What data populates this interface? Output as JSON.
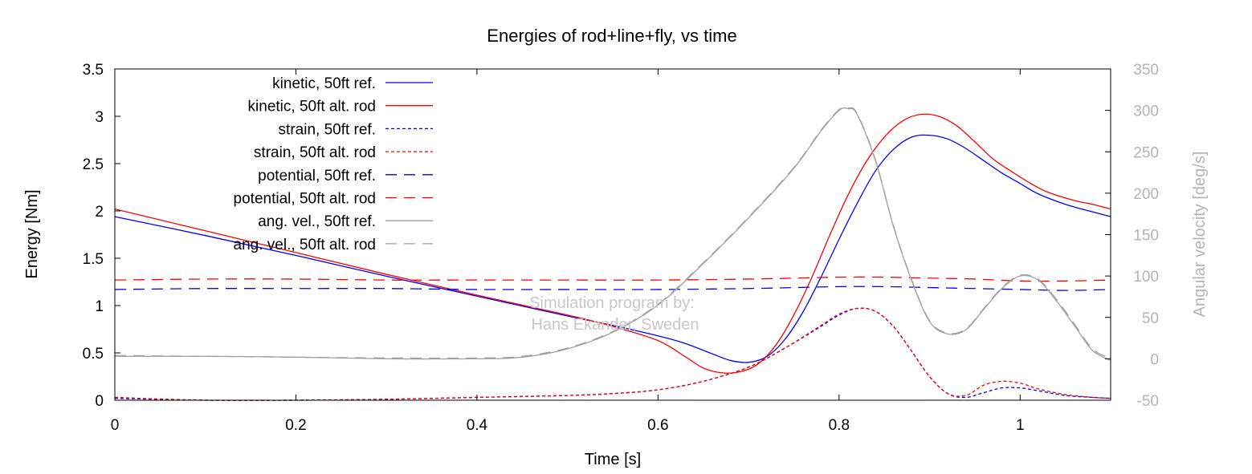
{
  "chart_data": {
    "type": "line",
    "title": "Energies of rod+line+fly, vs time",
    "xlabel": "Time [s]",
    "ylabel": "Energy [Nm]",
    "y2label": "Angular velocity [deg/s]",
    "xlim": [
      0,
      1.1
    ],
    "ylim": [
      0,
      3.5
    ],
    "y2lim": [
      -50,
      350
    ],
    "xticks": [
      0,
      0.2,
      0.4,
      0.6,
      0.8,
      1
    ],
    "xtick_labels": [
      "0",
      "0.2",
      "0.4",
      "0.6",
      "0.8",
      "1"
    ],
    "yticks": [
      0,
      0.5,
      1,
      1.5,
      2,
      2.5,
      3,
      3.5
    ],
    "ytick_labels": [
      "0",
      "0.5",
      "1",
      "1.5",
      "2",
      "2.5",
      "3",
      "3.5"
    ],
    "y2ticks": [
      -50,
      0,
      50,
      100,
      150,
      200,
      250,
      300,
      350
    ],
    "y2tick_labels": [
      "-50",
      "0",
      "50",
      "100",
      "150",
      "200",
      "250",
      "300",
      "350"
    ],
    "grid": false,
    "legend_position": "top-left",
    "watermark": [
      "Simulation program by:",
      "Hans Ekander, Sweden"
    ],
    "series": [
      {
        "name": "kinetic, 50ft ref.",
        "color": "#0000ff",
        "dash": "solid",
        "axis": "left",
        "points": [
          [
            0,
            1.94
          ],
          [
            0.1,
            1.74
          ],
          [
            0.2,
            1.53
          ],
          [
            0.3,
            1.31
          ],
          [
            0.4,
            1.1
          ],
          [
            0.5,
            0.89
          ],
          [
            0.55,
            0.79
          ],
          [
            0.6,
            0.68
          ],
          [
            0.63,
            0.6
          ],
          [
            0.66,
            0.49
          ],
          [
            0.68,
            0.42
          ],
          [
            0.7,
            0.4
          ],
          [
            0.72,
            0.46
          ],
          [
            0.74,
            0.64
          ],
          [
            0.76,
            0.93
          ],
          [
            0.78,
            1.3
          ],
          [
            0.8,
            1.7
          ],
          [
            0.82,
            2.08
          ],
          [
            0.84,
            2.42
          ],
          [
            0.86,
            2.65
          ],
          [
            0.88,
            2.78
          ],
          [
            0.9,
            2.8
          ],
          [
            0.92,
            2.76
          ],
          [
            0.94,
            2.66
          ],
          [
            0.96,
            2.53
          ],
          [
            0.98,
            2.4
          ],
          [
            1,
            2.29
          ],
          [
            1.02,
            2.18
          ],
          [
            1.05,
            2.07
          ],
          [
            1.08,
            1.99
          ],
          [
            1.1,
            1.94
          ]
        ]
      },
      {
        "name": "kinetic, 50ft alt. rod",
        "color": "#ff0000",
        "dash": "solid",
        "axis": "left",
        "points": [
          [
            0,
            2.02
          ],
          [
            0.1,
            1.79
          ],
          [
            0.2,
            1.56
          ],
          [
            0.3,
            1.33
          ],
          [
            0.4,
            1.11
          ],
          [
            0.5,
            0.9
          ],
          [
            0.55,
            0.78
          ],
          [
            0.6,
            0.63
          ],
          [
            0.63,
            0.46
          ],
          [
            0.65,
            0.34
          ],
          [
            0.67,
            0.29
          ],
          [
            0.69,
            0.3
          ],
          [
            0.71,
            0.38
          ],
          [
            0.73,
            0.58
          ],
          [
            0.75,
            0.9
          ],
          [
            0.77,
            1.3
          ],
          [
            0.79,
            1.75
          ],
          [
            0.81,
            2.17
          ],
          [
            0.83,
            2.52
          ],
          [
            0.85,
            2.78
          ],
          [
            0.87,
            2.95
          ],
          [
            0.89,
            3.02
          ],
          [
            0.91,
            3.0
          ],
          [
            0.93,
            2.9
          ],
          [
            0.95,
            2.73
          ],
          [
            0.97,
            2.55
          ],
          [
            0.99,
            2.42
          ],
          [
            1.01,
            2.3
          ],
          [
            1.03,
            2.2
          ],
          [
            1.06,
            2.11
          ],
          [
            1.08,
            2.07
          ],
          [
            1.1,
            2.02
          ]
        ]
      },
      {
        "name": "strain, 50ft ref.",
        "color": "#0000ff",
        "dash": "dotted",
        "axis": "left",
        "points": [
          [
            0,
            0.02
          ],
          [
            0.1,
            0.0
          ],
          [
            0.2,
            0.0
          ],
          [
            0.3,
            0.01
          ],
          [
            0.4,
            0.03
          ],
          [
            0.5,
            0.05
          ],
          [
            0.55,
            0.07
          ],
          [
            0.6,
            0.11
          ],
          [
            0.65,
            0.2
          ],
          [
            0.7,
            0.35
          ],
          [
            0.74,
            0.55
          ],
          [
            0.78,
            0.78
          ],
          [
            0.8,
            0.9
          ],
          [
            0.82,
            0.97
          ],
          [
            0.84,
            0.94
          ],
          [
            0.86,
            0.78
          ],
          [
            0.88,
            0.52
          ],
          [
            0.9,
            0.25
          ],
          [
            0.92,
            0.07
          ],
          [
            0.94,
            0.03
          ],
          [
            0.96,
            0.08
          ],
          [
            0.98,
            0.13
          ],
          [
            1,
            0.13
          ],
          [
            1.02,
            0.1
          ],
          [
            1.05,
            0.05
          ],
          [
            1.08,
            0.03
          ],
          [
            1.1,
            0.02
          ]
        ]
      },
      {
        "name": "strain, 50ft alt. rod",
        "color": "#ff0000",
        "dash": "dotted",
        "axis": "left",
        "points": [
          [
            0,
            0.03
          ],
          [
            0.1,
            0.0
          ],
          [
            0.2,
            0.0
          ],
          [
            0.3,
            0.01
          ],
          [
            0.4,
            0.03
          ],
          [
            0.5,
            0.05
          ],
          [
            0.55,
            0.07
          ],
          [
            0.6,
            0.11
          ],
          [
            0.65,
            0.2
          ],
          [
            0.7,
            0.35
          ],
          [
            0.74,
            0.55
          ],
          [
            0.78,
            0.79
          ],
          [
            0.8,
            0.91
          ],
          [
            0.82,
            0.97
          ],
          [
            0.84,
            0.94
          ],
          [
            0.86,
            0.78
          ],
          [
            0.88,
            0.52
          ],
          [
            0.9,
            0.25
          ],
          [
            0.92,
            0.07
          ],
          [
            0.94,
            0.05
          ],
          [
            0.96,
            0.16
          ],
          [
            0.98,
            0.2
          ],
          [
            1,
            0.18
          ],
          [
            1.02,
            0.12
          ],
          [
            1.05,
            0.06
          ],
          [
            1.08,
            0.03
          ],
          [
            1.1,
            0.02
          ]
        ]
      },
      {
        "name": "potential, 50ft ref.",
        "color": "#0000ff",
        "dash": "dashed",
        "axis": "left",
        "points": [
          [
            0,
            1.17
          ],
          [
            0.1,
            1.18
          ],
          [
            0.2,
            1.18
          ],
          [
            0.3,
            1.18
          ],
          [
            0.4,
            1.17
          ],
          [
            0.5,
            1.17
          ],
          [
            0.6,
            1.17
          ],
          [
            0.7,
            1.18
          ],
          [
            0.75,
            1.19
          ],
          [
            0.8,
            1.2
          ],
          [
            0.85,
            1.2
          ],
          [
            0.9,
            1.19
          ],
          [
            0.95,
            1.18
          ],
          [
            1,
            1.17
          ],
          [
            1.05,
            1.16
          ],
          [
            1.1,
            1.17
          ]
        ]
      },
      {
        "name": "potential, 50ft alt. rod",
        "color": "#ff0000",
        "dash": "dashed",
        "axis": "left",
        "points": [
          [
            0,
            1.27
          ],
          [
            0.1,
            1.28
          ],
          [
            0.2,
            1.28
          ],
          [
            0.3,
            1.27
          ],
          [
            0.4,
            1.27
          ],
          [
            0.5,
            1.27
          ],
          [
            0.6,
            1.27
          ],
          [
            0.7,
            1.28
          ],
          [
            0.75,
            1.29
          ],
          [
            0.8,
            1.3
          ],
          [
            0.85,
            1.3
          ],
          [
            0.9,
            1.29
          ],
          [
            0.95,
            1.28
          ],
          [
            1,
            1.26
          ],
          [
            1.05,
            1.26
          ],
          [
            1.1,
            1.27
          ]
        ]
      },
      {
        "name": "ang. vel., 50ft ref.",
        "color": "#a0a0a0",
        "dash": "solid",
        "axis": "right",
        "points": [
          [
            0,
            3
          ],
          [
            0.1,
            3
          ],
          [
            0.2,
            2
          ],
          [
            0.3,
            0
          ],
          [
            0.4,
            0
          ],
          [
            0.45,
            2
          ],
          [
            0.5,
            12
          ],
          [
            0.55,
            32
          ],
          [
            0.6,
            65
          ],
          [
            0.65,
            115
          ],
          [
            0.7,
            170
          ],
          [
            0.75,
            230
          ],
          [
            0.78,
            275
          ],
          [
            0.8,
            300
          ],
          [
            0.81,
            302
          ],
          [
            0.82,
            295
          ],
          [
            0.84,
            240
          ],
          [
            0.86,
            160
          ],
          [
            0.88,
            95
          ],
          [
            0.9,
            45
          ],
          [
            0.92,
            30
          ],
          [
            0.94,
            35
          ],
          [
            0.96,
            60
          ],
          [
            0.98,
            85
          ],
          [
            1,
            100
          ],
          [
            1.02,
            95
          ],
          [
            1.04,
            70
          ],
          [
            1.06,
            40
          ],
          [
            1.08,
            10
          ],
          [
            1.1,
            -2
          ]
        ]
      },
      {
        "name": "ang. vel., 50ft alt. rod",
        "color": "#a0a0a0",
        "dash": "dashed",
        "axis": "right",
        "points": [
          [
            0,
            4
          ],
          [
            0.1,
            3
          ],
          [
            0.2,
            2
          ],
          [
            0.3,
            1
          ],
          [
            0.4,
            1
          ],
          [
            0.45,
            3
          ],
          [
            0.5,
            13
          ],
          [
            0.55,
            33
          ],
          [
            0.6,
            66
          ],
          [
            0.65,
            116
          ],
          [
            0.7,
            171
          ],
          [
            0.75,
            231
          ],
          [
            0.78,
            276
          ],
          [
            0.8,
            301
          ],
          [
            0.81,
            303
          ],
          [
            0.82,
            296
          ],
          [
            0.84,
            241
          ],
          [
            0.86,
            161
          ],
          [
            0.88,
            96
          ],
          [
            0.9,
            46
          ],
          [
            0.92,
            31
          ],
          [
            0.94,
            36
          ],
          [
            0.96,
            61
          ],
          [
            0.98,
            86
          ],
          [
            1,
            101
          ],
          [
            1.02,
            96
          ],
          [
            1.04,
            72
          ],
          [
            1.06,
            42
          ],
          [
            1.08,
            12
          ],
          [
            1.1,
            0
          ]
        ]
      }
    ]
  }
}
